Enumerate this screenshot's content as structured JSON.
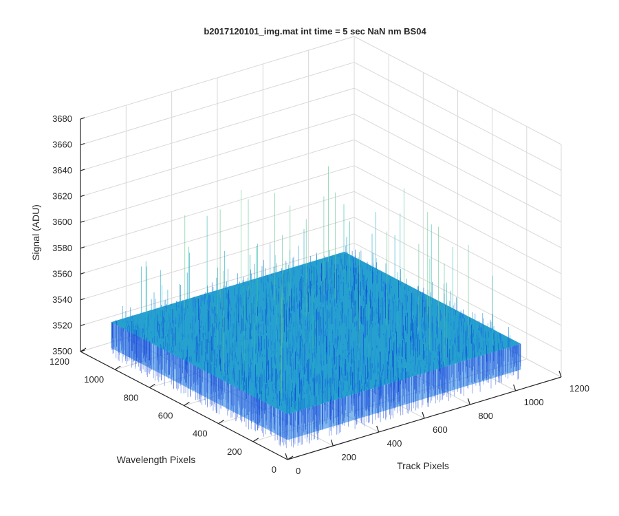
{
  "chart_data": {
    "type": "surface",
    "title": "b2017120101_img.mat int time = 5 sec  NaN nm BS04",
    "xlabel": "Track Pixels",
    "ylabel": "Wavelength Pixels",
    "zlabel": "Signal (ADU)",
    "xlim": [
      0,
      1200
    ],
    "ylim": [
      0,
      1200
    ],
    "zlim": [
      3500,
      3680
    ],
    "xticks": [
      "0",
      "200",
      "400",
      "600",
      "800",
      "1000",
      "1200"
    ],
    "yticks": [
      "0",
      "200",
      "400",
      "600",
      "800",
      "1000",
      "1200"
    ],
    "zticks": [
      "3500",
      "3520",
      "3540",
      "3560",
      "3580",
      "3600",
      "3620",
      "3640",
      "3660",
      "3680"
    ],
    "x_extent": [
      1,
      1024
    ],
    "y_extent": [
      1,
      1024
    ],
    "mean_signal": 3535,
    "noise_range": [
      3505,
      3620
    ],
    "grid": true,
    "colormap": [
      "#0b3fd6",
      "#1a6ee0",
      "#1f8fd4",
      "#24a8c8",
      "#31bbb1",
      "#5ec48f"
    ]
  }
}
